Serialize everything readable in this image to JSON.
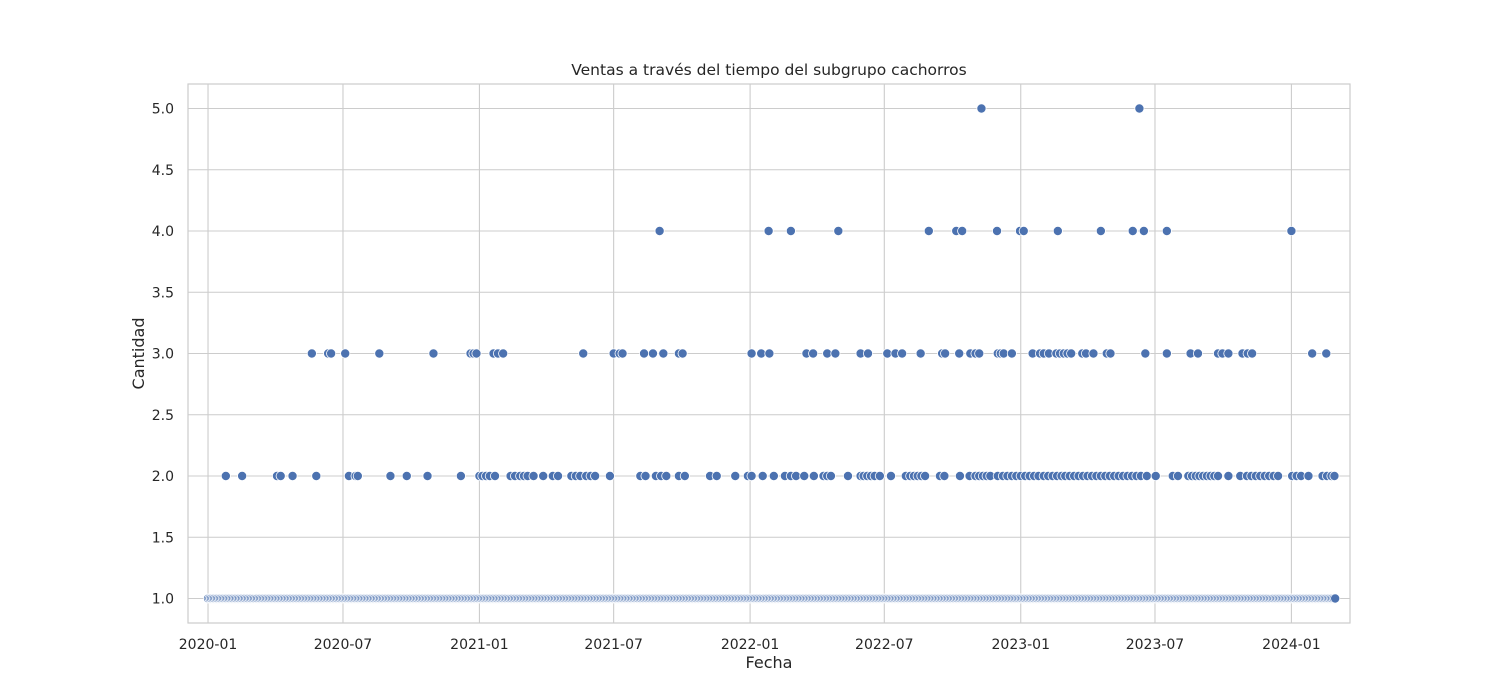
{
  "chart_data": {
    "type": "scatter",
    "title": "Ventas a través del tiempo del subgrupo cachorros",
    "xlabel": "Fecha",
    "ylabel": "Cantidad",
    "xlim": [
      "2019-12-05",
      "2024-03-20"
    ],
    "ylim": [
      0.8,
      5.2
    ],
    "grid": true,
    "x_ticks": [
      "2020-01-01",
      "2020-07-01",
      "2021-01-01",
      "2021-07-01",
      "2022-01-01",
      "2022-07-01",
      "2023-01-01",
      "2023-07-01",
      "2024-01-01"
    ],
    "x_tick_labels": [
      "2020-01",
      "2020-07",
      "2021-01",
      "2021-07",
      "2022-01",
      "2022-07",
      "2023-01",
      "2023-07",
      "2024-01"
    ],
    "y_ticks": [
      1.0,
      1.5,
      2.0,
      2.5,
      3.0,
      3.5,
      4.0,
      4.5,
      5.0
    ],
    "y_tick_labels": [
      "1.0",
      "1.5",
      "2.0",
      "2.5",
      "3.0",
      "3.5",
      "4.0",
      "4.5",
      "5.0"
    ],
    "colors": {
      "marker": "#4c72b0",
      "marker_edge": "#ffffff",
      "grid": "#cccccc",
      "frame": "#cccccc"
    },
    "points_y1": {
      "x_start": "2020-01-01",
      "x_end": "2024-03-01",
      "step_days": 2,
      "y": 1
    },
    "points_y2": {
      "y": 2,
      "x": [
        "2020-01-25",
        "2020-02-16",
        "2020-04-03",
        "2020-04-08",
        "2020-04-24",
        "2020-05-26",
        "2020-07-09",
        "2020-07-18",
        "2020-07-21",
        "2020-09-03",
        "2020-09-25",
        "2020-10-23",
        "2020-12-07",
        "2021-01-01",
        "2021-01-05",
        "2021-01-10",
        "2021-01-15",
        "2021-01-22",
        "2021-02-12",
        "2021-02-18",
        "2021-02-25",
        "2021-03-02",
        "2021-03-07",
        "2021-03-15",
        "2021-03-28",
        "2021-04-10",
        "2021-04-17",
        "2021-05-05",
        "2021-05-11",
        "2021-05-17",
        "2021-05-25",
        "2021-05-31",
        "2021-06-06",
        "2021-06-26",
        "2021-08-06",
        "2021-08-13",
        "2021-08-27",
        "2021-09-03",
        "2021-09-10",
        "2021-09-27",
        "2021-10-05",
        "2021-11-08",
        "2021-11-17",
        "2021-12-12",
        "2021-12-29",
        "2022-01-03",
        "2022-01-18",
        "2022-02-02",
        "2022-02-17",
        "2022-02-25",
        "2022-03-04",
        "2022-03-15",
        "2022-03-28",
        "2022-04-10",
        "2022-04-15",
        "2022-04-20",
        "2022-05-13",
        "2022-05-30",
        "2022-06-03",
        "2022-06-08",
        "2022-06-13",
        "2022-06-18",
        "2022-06-25",
        "2022-07-10",
        "2022-07-30",
        "2022-08-05",
        "2022-08-10",
        "2022-08-15",
        "2022-08-20",
        "2022-08-25",
        "2022-09-14",
        "2022-09-20",
        "2022-10-11",
        "2022-10-24",
        "2022-11-01",
        "2022-11-06",
        "2022-11-11",
        "2022-11-16",
        "2022-11-21",
        "2022-12-01",
        "2022-12-08",
        "2022-12-14",
        "2022-12-20",
        "2022-12-26",
        "2023-01-01",
        "2023-01-07",
        "2023-01-13",
        "2023-01-19",
        "2023-01-25",
        "2023-02-01",
        "2023-02-07",
        "2023-02-13",
        "2023-02-19",
        "2023-02-25",
        "2023-03-02",
        "2023-03-08",
        "2023-03-14",
        "2023-03-20",
        "2023-03-26",
        "2023-04-01",
        "2023-04-07",
        "2023-04-13",
        "2023-04-19",
        "2023-04-25",
        "2023-05-01",
        "2023-05-07",
        "2023-05-13",
        "2023-05-19",
        "2023-05-25",
        "2023-05-31",
        "2023-06-06",
        "2023-06-12",
        "2023-06-20",
        "2023-07-02",
        "2023-07-25",
        "2023-08-01",
        "2023-08-15",
        "2023-08-20",
        "2023-08-25",
        "2023-08-30",
        "2023-09-04",
        "2023-09-09",
        "2023-09-14",
        "2023-09-19",
        "2023-09-24",
        "2023-10-08",
        "2023-10-24",
        "2023-11-02",
        "2023-11-08",
        "2023-11-14",
        "2023-11-20",
        "2023-11-26",
        "2023-12-02",
        "2023-12-08",
        "2023-12-14",
        "2024-01-02",
        "2024-01-08",
        "2024-01-14",
        "2024-01-24",
        "2024-02-12",
        "2024-02-18",
        "2024-02-24",
        "2024-02-28"
      ]
    },
    "points_y3": {
      "y": 3,
      "x": [
        "2020-05-20",
        "2020-06-11",
        "2020-06-15",
        "2020-07-04",
        "2020-08-19",
        "2020-10-31",
        "2020-12-20",
        "2020-12-24",
        "2020-12-28",
        "2021-01-20",
        "2021-01-26",
        "2021-02-02",
        "2021-05-21",
        "2021-07-01",
        "2021-07-09",
        "2021-07-13",
        "2021-08-11",
        "2021-08-23",
        "2021-09-06",
        "2021-09-27",
        "2021-10-02",
        "2022-01-03",
        "2022-01-16",
        "2022-01-27",
        "2022-03-18",
        "2022-03-27",
        "2022-04-15",
        "2022-04-26",
        "2022-05-30",
        "2022-06-09",
        "2022-07-05",
        "2022-07-16",
        "2022-07-25",
        "2022-08-19",
        "2022-09-17",
        "2022-09-21",
        "2022-10-10",
        "2022-10-25",
        "2022-11-01",
        "2022-11-06",
        "2022-12-01",
        "2022-12-05",
        "2022-12-09",
        "2022-12-20",
        "2023-01-17",
        "2023-01-27",
        "2023-02-01",
        "2023-02-08",
        "2023-02-18",
        "2023-02-23",
        "2023-02-28",
        "2023-03-05",
        "2023-03-10",
        "2023-03-25",
        "2023-03-30",
        "2023-04-09",
        "2023-04-27",
        "2023-05-02",
        "2023-06-18",
        "2023-07-17",
        "2023-08-18",
        "2023-08-28",
        "2023-09-24",
        "2023-09-30",
        "2023-10-08",
        "2023-10-27",
        "2023-11-03",
        "2023-11-09",
        "2024-01-29",
        "2024-02-17"
      ]
    },
    "points_y4": {
      "y": 4,
      "x": [
        "2021-09-01",
        "2022-01-26",
        "2022-02-25",
        "2022-04-30",
        "2022-08-30",
        "2022-10-06",
        "2022-10-14",
        "2022-11-30",
        "2022-12-31",
        "2023-01-05",
        "2023-02-20",
        "2023-04-19",
        "2023-06-01",
        "2023-06-16",
        "2023-07-17",
        "2024-01-01"
      ]
    },
    "points_y5": {
      "y": 5,
      "x": [
        "2022-11-09",
        "2023-06-10"
      ]
    }
  }
}
